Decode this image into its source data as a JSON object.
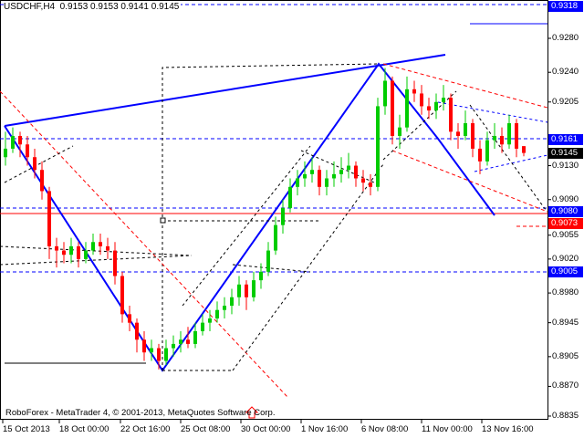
{
  "header": {
    "title": "USDCHF,H4  0.9153 0.9153 0.9141 0.9145"
  },
  "footer": {
    "copyright": "RoboForex - MetaTrader 4, © 2001-2013, MetaQuotes Software Corp."
  },
  "colors": {
    "bull": "#00cc00",
    "bear": "#ff0000",
    "level": "#0000ff",
    "current_price_bg": "#000000",
    "target_bg": "#ff0000"
  },
  "chart_data": {
    "type": "candlestick",
    "symbol": "USDCHF",
    "timeframe": "H4",
    "ylim": [
      0.882,
      0.933
    ],
    "y_ticks": [
      "0.9280",
      "0.9240",
      "0.9205",
      "0.9130",
      "0.9090",
      "0.9055",
      "0.9020",
      "0.8980",
      "0.8945",
      "0.8905",
      "0.8870",
      "0.8835"
    ],
    "x_ticks": [
      "15 Oct 2013",
      "18 Oct 00:00",
      "22 Oct 16:00",
      "25 Oct 08:00",
      "30 Oct 00:00",
      "1 Nov 16:00",
      "6 Nov 08:00",
      "11 Nov 00:00",
      "13 Nov 16:00"
    ],
    "price_labels": [
      {
        "value": "0.9318",
        "kind": "level"
      },
      {
        "value": "0.9161",
        "kind": "level"
      },
      {
        "value": "0.9145",
        "kind": "current"
      },
      {
        "value": "0.9080",
        "kind": "level"
      },
      {
        "value": "0.9073",
        "kind": "target"
      },
      {
        "value": "0.9005",
        "kind": "level"
      }
    ],
    "candles": [
      [
        0.914,
        0.917,
        0.913,
        0.915
      ],
      [
        0.915,
        0.9175,
        0.9145,
        0.9165
      ],
      [
        0.9165,
        0.917,
        0.914,
        0.9155
      ],
      [
        0.9155,
        0.9165,
        0.913,
        0.914
      ],
      [
        0.914,
        0.915,
        0.9115,
        0.9125
      ],
      [
        0.9125,
        0.9135,
        0.909,
        0.91
      ],
      [
        0.91,
        0.9105,
        0.902,
        0.9035
      ],
      [
        0.9035,
        0.9045,
        0.901,
        0.903
      ],
      [
        0.903,
        0.904,
        0.9015,
        0.9025
      ],
      [
        0.9025,
        0.9045,
        0.9015,
        0.9035
      ],
      [
        0.9035,
        0.904,
        0.901,
        0.902
      ],
      [
        0.902,
        0.904,
        0.9015,
        0.903
      ],
      [
        0.903,
        0.905,
        0.9025,
        0.904
      ],
      [
        0.904,
        0.905,
        0.9025,
        0.9035
      ],
      [
        0.9035,
        0.9045,
        0.902,
        0.903
      ],
      [
        0.903,
        0.904,
        0.899,
        0.9
      ],
      [
        0.9,
        0.9005,
        0.8945,
        0.8955
      ],
      [
        0.8955,
        0.8965,
        0.8935,
        0.8945
      ],
      [
        0.8945,
        0.895,
        0.891,
        0.8925
      ],
      [
        0.8925,
        0.8935,
        0.89,
        0.891
      ],
      [
        0.891,
        0.8925,
        0.89,
        0.8915
      ],
      [
        0.8915,
        0.892,
        0.889,
        0.89
      ],
      [
        0.89,
        0.8925,
        0.8895,
        0.8915
      ],
      [
        0.8915,
        0.893,
        0.8905,
        0.892
      ],
      [
        0.892,
        0.8935,
        0.891,
        0.8925
      ],
      [
        0.8925,
        0.894,
        0.8915,
        0.892
      ],
      [
        0.892,
        0.8945,
        0.8915,
        0.8935
      ],
      [
        0.8935,
        0.8955,
        0.893,
        0.8945
      ],
      [
        0.8945,
        0.896,
        0.8935,
        0.895
      ],
      [
        0.895,
        0.897,
        0.8945,
        0.896
      ],
      [
        0.896,
        0.8975,
        0.895,
        0.8965
      ],
      [
        0.8965,
        0.8985,
        0.8955,
        0.8975
      ],
      [
        0.8975,
        0.9,
        0.8965,
        0.899
      ],
      [
        0.899,
        0.8995,
        0.896,
        0.8975
      ],
      [
        0.8975,
        0.9005,
        0.897,
        0.8995
      ],
      [
        0.8995,
        0.9015,
        0.8985,
        0.9005
      ],
      [
        0.9005,
        0.904,
        0.9,
        0.903
      ],
      [
        0.903,
        0.907,
        0.9025,
        0.906
      ],
      [
        0.906,
        0.909,
        0.905,
        0.908
      ],
      [
        0.908,
        0.9115,
        0.9075,
        0.9105
      ],
      [
        0.9105,
        0.9125,
        0.9095,
        0.9115
      ],
      [
        0.9115,
        0.9135,
        0.9105,
        0.912
      ],
      [
        0.912,
        0.914,
        0.911,
        0.9125
      ],
      [
        0.9125,
        0.913,
        0.9095,
        0.9105
      ],
      [
        0.9105,
        0.9125,
        0.9095,
        0.9115
      ],
      [
        0.9115,
        0.9135,
        0.9105,
        0.912
      ],
      [
        0.912,
        0.914,
        0.911,
        0.9125
      ],
      [
        0.9125,
        0.9145,
        0.9115,
        0.913
      ],
      [
        0.913,
        0.9135,
        0.9105,
        0.9115
      ],
      [
        0.9115,
        0.9125,
        0.91,
        0.911
      ],
      [
        0.911,
        0.912,
        0.9095,
        0.9105
      ],
      [
        0.9105,
        0.921,
        0.91,
        0.92
      ],
      [
        0.92,
        0.9245,
        0.919,
        0.923
      ],
      [
        0.923,
        0.9235,
        0.9155,
        0.9165
      ],
      [
        0.9165,
        0.919,
        0.915,
        0.9175
      ],
      [
        0.9175,
        0.9235,
        0.917,
        0.922
      ],
      [
        0.922,
        0.923,
        0.9205,
        0.9215
      ],
      [
        0.9215,
        0.9225,
        0.919,
        0.92
      ],
      [
        0.92,
        0.921,
        0.9185,
        0.9195
      ],
      [
        0.9195,
        0.9215,
        0.9185,
        0.9205
      ],
      [
        0.9205,
        0.9225,
        0.9195,
        0.921
      ],
      [
        0.921,
        0.9215,
        0.916,
        0.917
      ],
      [
        0.917,
        0.918,
        0.915,
        0.9165
      ],
      [
        0.9165,
        0.9195,
        0.916,
        0.918
      ],
      [
        0.918,
        0.9185,
        0.914,
        0.915
      ],
      [
        0.915,
        0.916,
        0.912,
        0.9135
      ],
      [
        0.9135,
        0.917,
        0.913,
        0.916
      ],
      [
        0.916,
        0.918,
        0.915,
        0.9165
      ],
      [
        0.9165,
        0.9175,
        0.9145,
        0.9155
      ],
      [
        0.9155,
        0.919,
        0.915,
        0.918
      ],
      [
        0.918,
        0.9185,
        0.914,
        0.915
      ],
      [
        0.9153,
        0.9153,
        0.9141,
        0.9145
      ]
    ]
  }
}
